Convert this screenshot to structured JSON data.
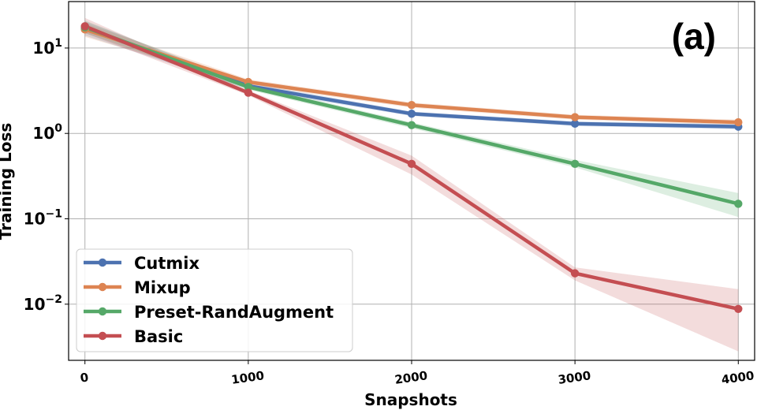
{
  "chart_data": {
    "type": "line",
    "panel_label": "(a)",
    "xlabel": "Snapshots",
    "ylabel": "Training Loss",
    "yscale": "log",
    "x": [
      0,
      1000,
      2000,
      3000,
      4000
    ],
    "xticks": [
      "0",
      "1000",
      "2000",
      "3000",
      "4000"
    ],
    "xlim": [
      -100,
      4100
    ],
    "ylim": [
      0.0022,
      35
    ],
    "yticks": [
      {
        "value": 10,
        "base": "10",
        "exp": "1"
      },
      {
        "value": 1,
        "base": "10",
        "exp": "0"
      },
      {
        "value": 0.1,
        "base": "10",
        "exp": "−1"
      },
      {
        "value": 0.01,
        "base": "10",
        "exp": "−2"
      }
    ],
    "grid": true,
    "legend_position": "lower-left",
    "series": [
      {
        "name": "Cutmix",
        "color": "#4c72b0",
        "values": [
          17.0,
          3.6,
          1.7,
          1.3,
          1.2
        ],
        "lower": [
          14.0,
          3.3,
          1.6,
          1.22,
          1.12
        ],
        "upper": [
          20.5,
          3.9,
          1.8,
          1.38,
          1.28
        ]
      },
      {
        "name": "Mixup",
        "color": "#dd8452",
        "values": [
          16.5,
          4.0,
          2.15,
          1.55,
          1.35
        ],
        "lower": [
          13.5,
          3.7,
          2.0,
          1.45,
          1.26
        ],
        "upper": [
          19.5,
          4.3,
          2.3,
          1.65,
          1.45
        ]
      },
      {
        "name": "Preset-RandAugment",
        "color": "#55a868",
        "values": [
          17.5,
          3.5,
          1.25,
          0.44,
          0.15
        ],
        "lower": [
          15.0,
          3.25,
          1.15,
          0.4,
          0.105
        ],
        "upper": [
          21.0,
          3.75,
          1.35,
          0.49,
          0.2
        ]
      },
      {
        "name": "Basic",
        "color": "#c44e52",
        "values": [
          18.0,
          3.0,
          0.44,
          0.023,
          0.0088
        ],
        "lower": [
          15.0,
          2.8,
          0.33,
          0.019,
          0.0028
        ],
        "upper": [
          22.5,
          3.2,
          0.55,
          0.027,
          0.015
        ]
      }
    ]
  }
}
